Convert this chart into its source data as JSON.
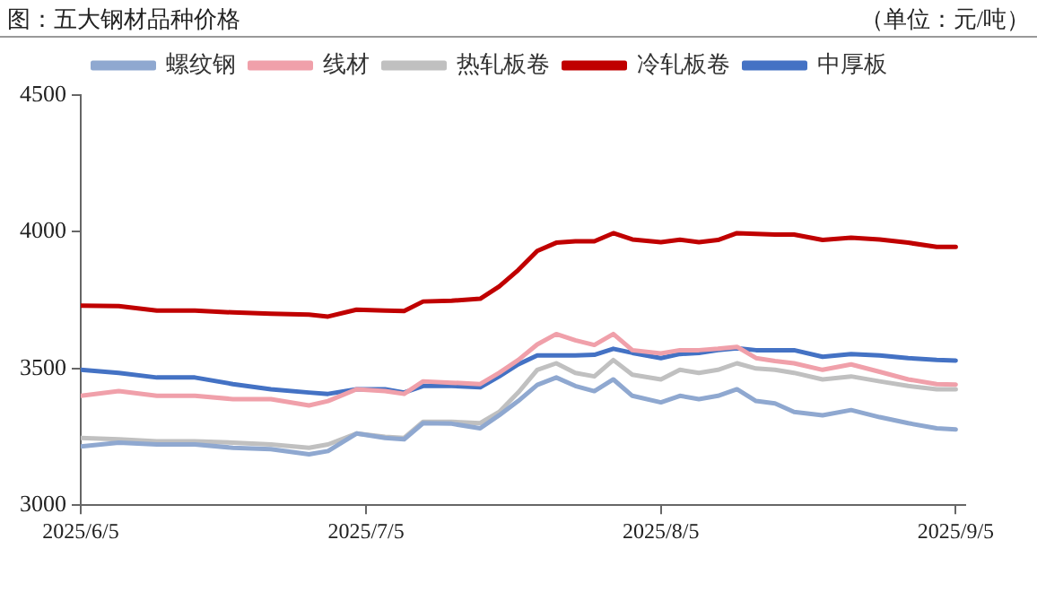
{
  "chart_data": {
    "type": "line",
    "title": "图：五大钢材品种价格",
    "subtitle": "（单位：元/吨）",
    "x": [
      "2025-06-05",
      "2025-06-09",
      "2025-06-13",
      "2025-06-17",
      "2025-06-21",
      "2025-06-25",
      "2025-06-29",
      "2025-07-01",
      "2025-07-04",
      "2025-07-07",
      "2025-07-09",
      "2025-07-11",
      "2025-07-14",
      "2025-07-17",
      "2025-07-19",
      "2025-07-21",
      "2025-07-23",
      "2025-07-25",
      "2025-07-27",
      "2025-07-29",
      "2025-07-31",
      "2025-08-02",
      "2025-08-05",
      "2025-08-07",
      "2025-08-09",
      "2025-08-11",
      "2025-08-13",
      "2025-08-15",
      "2025-08-17",
      "2025-08-19",
      "2025-08-22",
      "2025-08-25",
      "2025-08-28",
      "2025-08-31",
      "2025-09-03",
      "2025-09-05"
    ],
    "series": [
      {
        "name": "螺纹钢",
        "color": "#8fa8d0",
        "values": [
          3215,
          3229,
          3222,
          3222,
          3210,
          3205,
          3186,
          3198,
          3262,
          3246,
          3241,
          3300,
          3298,
          3281,
          3329,
          3381,
          3440,
          3467,
          3436,
          3417,
          3460,
          3400,
          3376,
          3400,
          3388,
          3400,
          3424,
          3381,
          3372,
          3341,
          3329,
          3348,
          3322,
          3300,
          3281,
          3277
        ]
      },
      {
        "name": "线材",
        "color": "#f0a0aa",
        "values": [
          3400,
          3417,
          3400,
          3400,
          3388,
          3388,
          3365,
          3381,
          3424,
          3417,
          3407,
          3453,
          3448,
          3443,
          3484,
          3531,
          3588,
          3626,
          3603,
          3586,
          3626,
          3567,
          3555,
          3567,
          3567,
          3572,
          3579,
          3538,
          3527,
          3519,
          3495,
          3515,
          3488,
          3460,
          3443,
          3441
        ]
      },
      {
        "name": "热轧板卷",
        "color": "#c0c0c0",
        "values": [
          3246,
          3241,
          3234,
          3234,
          3229,
          3222,
          3210,
          3222,
          3262,
          3250,
          3246,
          3305,
          3305,
          3300,
          3341,
          3412,
          3495,
          3519,
          3484,
          3471,
          3531,
          3477,
          3460,
          3495,
          3484,
          3495,
          3519,
          3500,
          3495,
          3484,
          3460,
          3471,
          3453,
          3436,
          3424,
          3424
        ]
      },
      {
        "name": "冷轧板卷",
        "color": "#c00000",
        "values": [
          3730,
          3728,
          3712,
          3712,
          3705,
          3700,
          3697,
          3690,
          3715,
          3712,
          3710,
          3745,
          3748,
          3755,
          3800,
          3860,
          3930,
          3960,
          3965,
          3965,
          3995,
          3972,
          3962,
          3971,
          3962,
          3970,
          3995,
          3992,
          3990,
          3990,
          3970,
          3978,
          3972,
          3960,
          3945,
          3945
        ]
      },
      {
        "name": "中厚板",
        "color": "#4472c4",
        "values": [
          3495,
          3484,
          3467,
          3467,
          3443,
          3424,
          3412,
          3407,
          3424,
          3424,
          3412,
          3436,
          3436,
          3431,
          3471,
          3515,
          3548,
          3548,
          3548,
          3550,
          3572,
          3557,
          3538,
          3553,
          3557,
          3567,
          3574,
          3567,
          3567,
          3567,
          3543,
          3553,
          3548,
          3538,
          3531,
          3529
        ]
      }
    ],
    "xlim": [
      "2025-06-05",
      "2025-09-06"
    ],
    "xticks": [
      {
        "value": "2025-06-05",
        "label": "2025/6/5"
      },
      {
        "value": "2025-07-05",
        "label": "2025/7/5"
      },
      {
        "value": "2025-08-05",
        "label": "2025/8/5"
      },
      {
        "value": "2025-09-05",
        "label": "2025/9/5"
      }
    ],
    "ylim": [
      3000,
      4500
    ],
    "yticks": [
      3000,
      3500,
      4000,
      4500
    ],
    "grid": false,
    "legend": "top",
    "marker": "none",
    "line_style": "solid"
  }
}
